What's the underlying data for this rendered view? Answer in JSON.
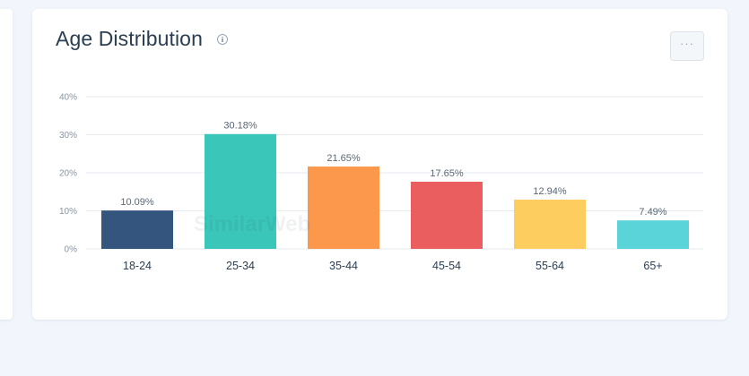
{
  "card": {
    "title": "Age Distribution",
    "info_icon": "info-circle-icon",
    "menu_label": "···"
  },
  "watermark": "SimilarWeb",
  "chart_data": {
    "type": "bar",
    "title": "Age Distribution",
    "xlabel": "",
    "ylabel": "",
    "categories": [
      "18-24",
      "25-34",
      "35-44",
      "45-54",
      "55-64",
      "65+"
    ],
    "values": [
      10.09,
      30.18,
      21.65,
      17.65,
      12.94,
      7.49
    ],
    "data_labels": [
      "10.09%",
      "30.18%",
      "21.65%",
      "17.65%",
      "12.94%",
      "7.49%"
    ],
    "colors": [
      "#34557e",
      "#3ac6b8",
      "#fc984c",
      "#eb5e5f",
      "#fdcd60",
      "#5ad4d8"
    ],
    "ylim": [
      0,
      40
    ],
    "yticks": [
      0,
      10,
      20,
      30,
      40
    ],
    "ytick_labels": [
      "0%",
      "10%",
      "20%",
      "30%",
      "40%"
    ],
    "grid": true,
    "legend": "none"
  }
}
